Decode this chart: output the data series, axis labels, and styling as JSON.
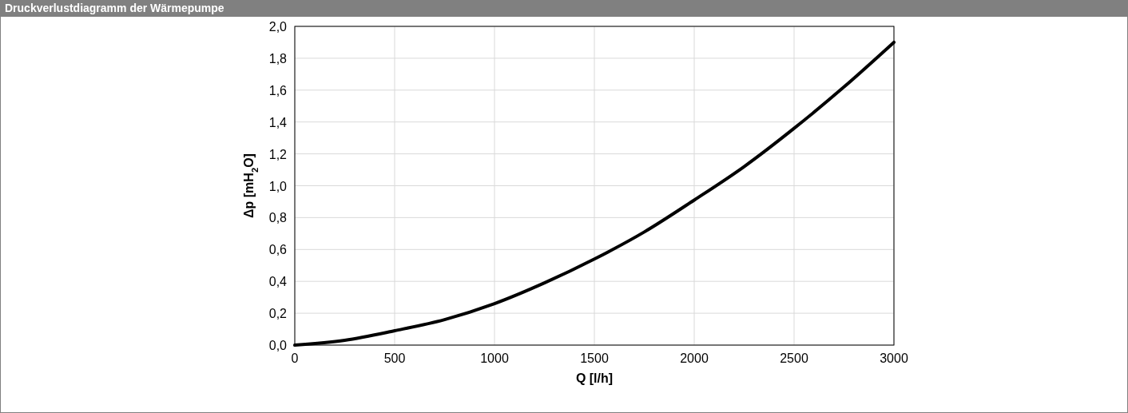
{
  "chart_data": {
    "type": "line",
    "title": "Druckverlustdiagramm der Wärmepumpe",
    "xlabel": "Q [l/h]",
    "ylabel": "Δp [mH$_{2}$O]",
    "x": [
      0,
      250,
      500,
      750,
      1000,
      1250,
      1500,
      1750,
      2000,
      2250,
      2500,
      2750,
      3000
    ],
    "series": [
      {
        "color": "#000000",
        "values": [
          0,
          0.03,
          0.09,
          0.16,
          0.26,
          0.39,
          0.54,
          0.71,
          0.91,
          1.12,
          1.36,
          1.62,
          1.9
        ]
      }
    ],
    "xlim": [
      0,
      3000
    ],
    "xticks": [
      0,
      500,
      1000,
      1500,
      2000,
      2500,
      3000
    ],
    "ylim": [
      0,
      2
    ],
    "yticks": [
      {
        "value": 0,
        "label": "0,0"
      },
      {
        "value": 0.2,
        "label": "0,2"
      },
      {
        "value": 0.4,
        "label": "0,4"
      },
      {
        "value": 0.6,
        "label": "0,6"
      },
      {
        "value": 0.8,
        "label": "0,8"
      },
      {
        "value": 1,
        "label": "1,0"
      },
      {
        "value": 1.2,
        "label": "1,2"
      },
      {
        "value": 1.4,
        "label": "1,4"
      },
      {
        "value": 1.6,
        "label": "1,6"
      },
      {
        "value": 1.8,
        "label": "1,8"
      },
      {
        "value": 2,
        "label": "2,0"
      }
    ],
    "grid": true,
    "marker": "none",
    "line_style": "solid"
  }
}
